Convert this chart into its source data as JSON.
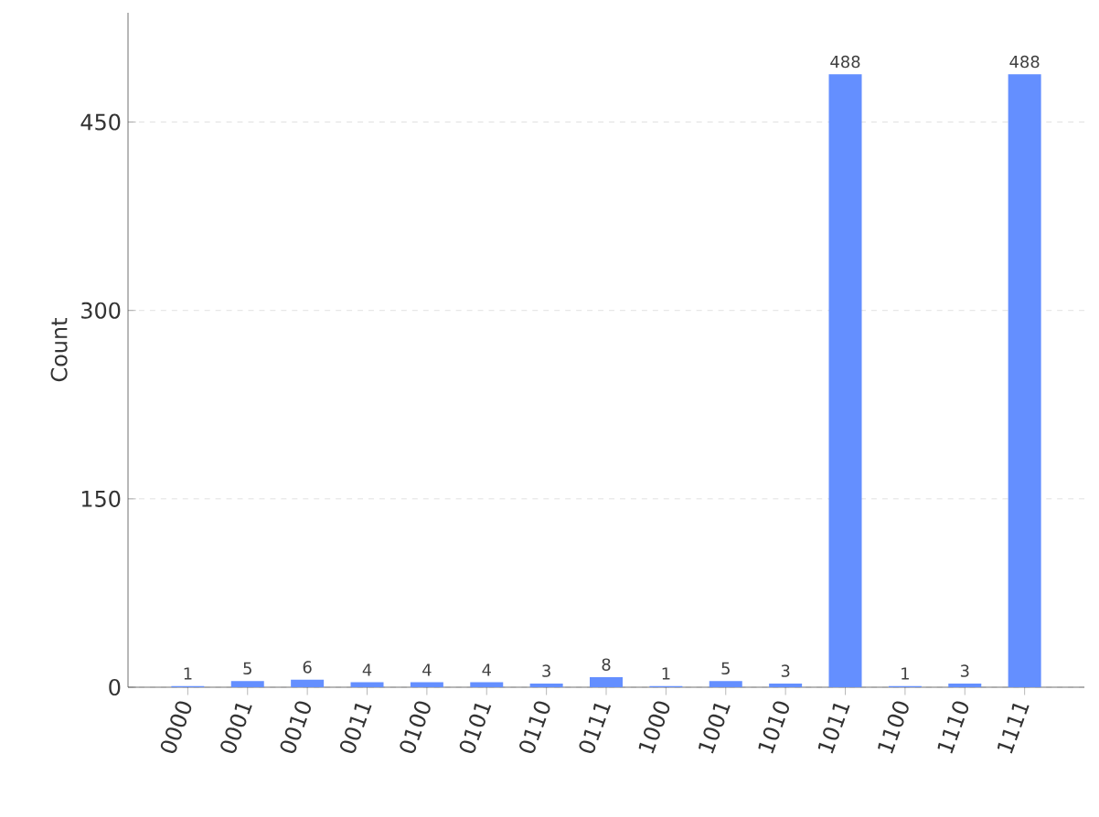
{
  "chart_data": {
    "type": "bar",
    "ylabel": "Count",
    "categories": [
      "0000",
      "0001",
      "0010",
      "0011",
      "0100",
      "0101",
      "0110",
      "0111",
      "1000",
      "1001",
      "1010",
      "1011",
      "1100",
      "1110",
      "1111"
    ],
    "values": [
      1,
      5,
      6,
      4,
      4,
      4,
      3,
      8,
      1,
      5,
      3,
      488,
      1,
      3,
      488
    ],
    "color": "#648fff",
    "ylim": [
      0,
      537
    ],
    "yticks": [
      0,
      150,
      300,
      450
    ],
    "grid": "y",
    "data_labels": true
  }
}
